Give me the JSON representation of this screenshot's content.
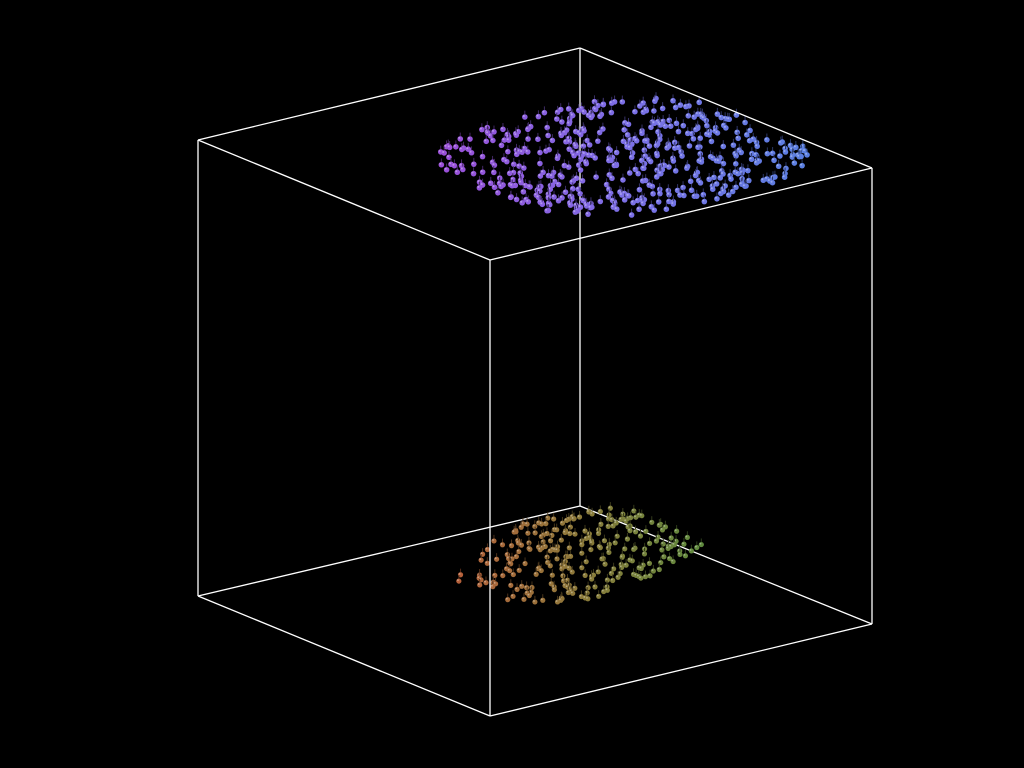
{
  "scene": {
    "background_color": "#000000",
    "box_color": "#ffffff",
    "clusters": [
      {
        "name": "upper",
        "point_count": 520,
        "color_left": "#9a4fd8",
        "color_mid": "#7c6fe6",
        "color_right": "#5a7fe0"
      },
      {
        "name": "lower",
        "point_count": 260,
        "color_left": "#b5603a",
        "color_mid": "#8c7a3a",
        "color_right": "#5f8a3e"
      }
    ]
  }
}
